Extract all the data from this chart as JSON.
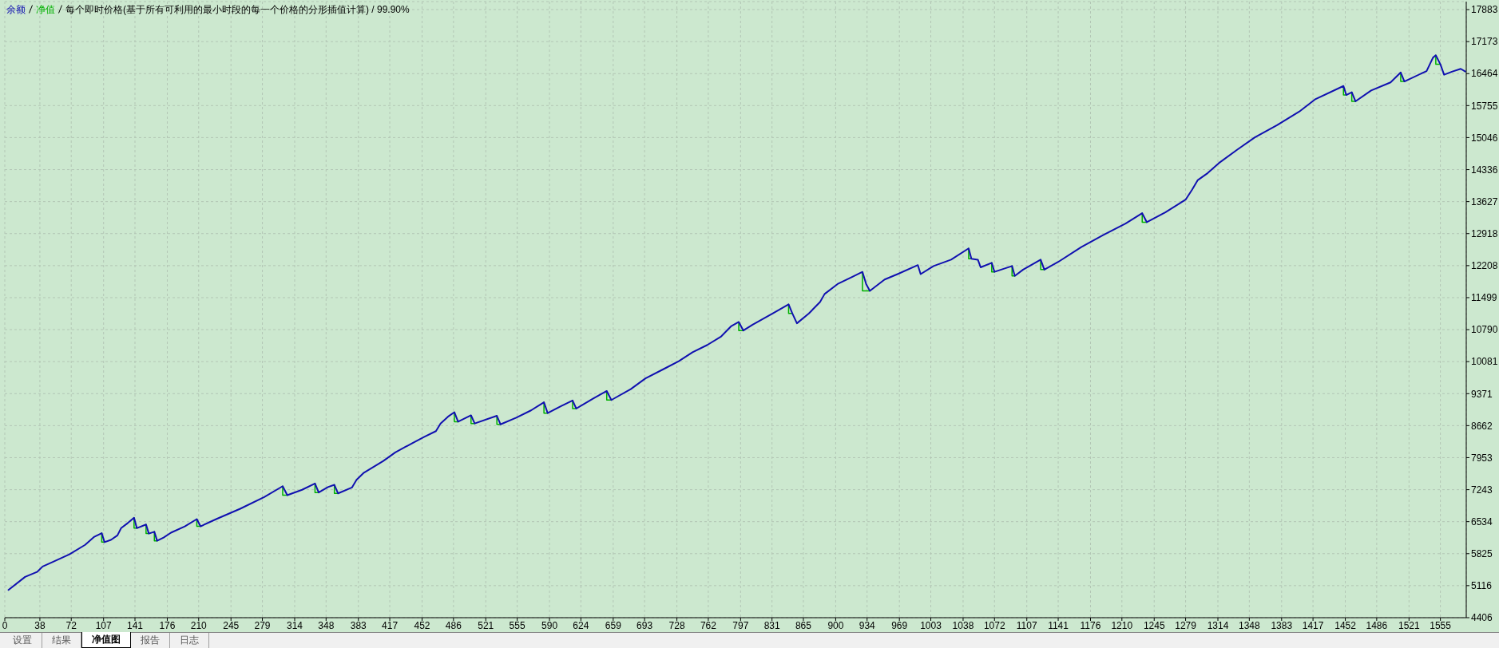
{
  "chart_data": {
    "type": "line",
    "title": "每个即时价格(基于所有可利用的最小时段的每一个价格的分形插值计算) / 99.90%",
    "x": [
      4,
      22,
      35,
      41,
      53,
      70,
      87,
      97,
      105,
      108,
      115,
      122,
      126,
      133,
      140,
      143,
      153,
      156,
      162,
      165,
      172,
      180,
      195,
      208,
      212,
      229,
      255,
      281,
      301,
      306,
      322,
      336,
      340,
      350,
      357,
      361,
      376,
      381,
      389,
      410,
      423,
      441,
      454,
      467,
      472,
      480,
      487,
      491,
      505,
      509,
      533,
      537,
      554,
      570,
      584,
      588,
      603,
      615,
      619,
      637,
      652,
      657,
      678,
      694,
      714,
      730,
      745,
      761,
      776,
      787,
      795,
      800,
      810,
      832,
      849,
      853,
      858,
      871,
      883,
      888,
      902,
      919,
      929,
      933,
      937,
      953,
      967,
      989,
      992,
      1006,
      1025,
      1044,
      1047,
      1054,
      1057,
      1069,
      1072,
      1091,
      1094,
      1103,
      1122,
      1126,
      1141,
      1166,
      1190,
      1214,
      1232,
      1237,
      1257,
      1279,
      1286,
      1292,
      1303,
      1315,
      1335,
      1354,
      1378,
      1402,
      1419,
      1450,
      1453,
      1459,
      1463,
      1480,
      1501,
      1512,
      1516,
      1540,
      1547,
      1550,
      1555,
      1559,
      1568,
      1577,
      1582
    ],
    "series": [
      {
        "name": "余额",
        "color": "#1010b0",
        "values": [
          5020,
          5310,
          5420,
          5540,
          5650,
          5810,
          6020,
          6200,
          6280,
          6080,
          6130,
          6230,
          6390,
          6500,
          6620,
          6390,
          6470,
          6270,
          6310,
          6110,
          6180,
          6290,
          6430,
          6590,
          6430,
          6590,
          6820,
          7080,
          7320,
          7120,
          7240,
          7380,
          7180,
          7300,
          7350,
          7160,
          7290,
          7460,
          7620,
          7880,
          8070,
          8270,
          8410,
          8540,
          8710,
          8860,
          8960,
          8750,
          8890,
          8710,
          8880,
          8690,
          8840,
          9000,
          9180,
          8940,
          9100,
          9220,
          9040,
          9260,
          9430,
          9230,
          9470,
          9710,
          9920,
          10090,
          10290,
          10450,
          10640,
          10870,
          10960,
          10770,
          10900,
          11150,
          11350,
          11150,
          10930,
          11150,
          11400,
          11580,
          11800,
          11970,
          12070,
          11800,
          11650,
          11900,
          12020,
          12220,
          12020,
          12200,
          12340,
          12590,
          12360,
          12340,
          12170,
          12270,
          12070,
          12200,
          11980,
          12120,
          12340,
          12120,
          12290,
          12620,
          12890,
          13140,
          13370,
          13170,
          13390,
          13670,
          13890,
          14100,
          14260,
          14480,
          14780,
          15050,
          15320,
          15620,
          15890,
          16190,
          15990,
          16050,
          15850,
          16090,
          16270,
          16490,
          16290,
          16520,
          16820,
          16870,
          16670,
          16440,
          16510,
          16570,
          16510
        ]
      },
      {
        "name": "净值",
        "color": "#00b000",
        "x": [
          105,
          105,
          108,
          null,
          140,
          140,
          143,
          null,
          153,
          153,
          156,
          null,
          162,
          162,
          165,
          null,
          208,
          208,
          212,
          null,
          301,
          301,
          306,
          null,
          336,
          336,
          340,
          null,
          357,
          357,
          361,
          null,
          487,
          487,
          491,
          null,
          505,
          505,
          509,
          null,
          533,
          533,
          537,
          null,
          584,
          584,
          588,
          null,
          615,
          615,
          619,
          null,
          652,
          652,
          657,
          null,
          795,
          795,
          800,
          null,
          849,
          849,
          853,
          null,
          929,
          929,
          937,
          null,
          1044,
          1044,
          1047,
          null,
          1069,
          1069,
          1072,
          null,
          1091,
          1091,
          1094,
          null,
          1122,
          1122,
          1126,
          null,
          1232,
          1232,
          1237,
          null,
          1450,
          1450,
          1453,
          null,
          1459,
          1459,
          1463,
          null,
          1512,
          1512,
          1516,
          null,
          1550,
          1550,
          1555
        ],
        "values": [
          6280,
          6080,
          6080,
          null,
          6620,
          6390,
          6390,
          null,
          6470,
          6270,
          6270,
          null,
          6310,
          6110,
          6110,
          null,
          6590,
          6430,
          6430,
          null,
          7320,
          7120,
          7120,
          null,
          7380,
          7180,
          7180,
          null,
          7350,
          7160,
          7160,
          null,
          8960,
          8750,
          8750,
          null,
          8890,
          8710,
          8710,
          null,
          8880,
          8690,
          8690,
          null,
          9180,
          8940,
          8940,
          null,
          9220,
          9040,
          9040,
          null,
          9430,
          9230,
          9230,
          null,
          10960,
          10770,
          10770,
          null,
          11350,
          11150,
          11150,
          null,
          12070,
          11650,
          11650,
          null,
          12590,
          12360,
          12360,
          null,
          12270,
          12070,
          12070,
          null,
          12200,
          11980,
          11980,
          null,
          12340,
          12120,
          12120,
          null,
          13370,
          13170,
          13170,
          null,
          16190,
          15990,
          15990,
          null,
          16050,
          15850,
          15850,
          null,
          16490,
          16290,
          16290,
          null,
          16870,
          16670,
          16670
        ]
      }
    ],
    "xlim": [
      0,
      1583
    ],
    "xticks": [
      0,
      38,
      72,
      107,
      141,
      176,
      210,
      245,
      279,
      314,
      348,
      383,
      417,
      452,
      486,
      521,
      555,
      590,
      624,
      659,
      693,
      728,
      762,
      797,
      831,
      865,
      900,
      934,
      969,
      1003,
      1038,
      1072,
      1107,
      1141,
      1176,
      1210,
      1245,
      1279,
      1314,
      1348,
      1383,
      1417,
      1452,
      1486,
      1521,
      1555
    ],
    "ylim": [
      4406,
      18060
    ],
    "yticks": [
      4406,
      5116,
      5825,
      6534,
      7243,
      7953,
      8662,
      9371,
      10081,
      10790,
      11499,
      12208,
      12918,
      13627,
      14336,
      15046,
      15755,
      16464,
      17173,
      17883
    ],
    "grid": true,
    "legend": "top left",
    "annotations": [
      "设置",
      "结果",
      "净值图",
      "报告",
      "日志"
    ]
  }
}
